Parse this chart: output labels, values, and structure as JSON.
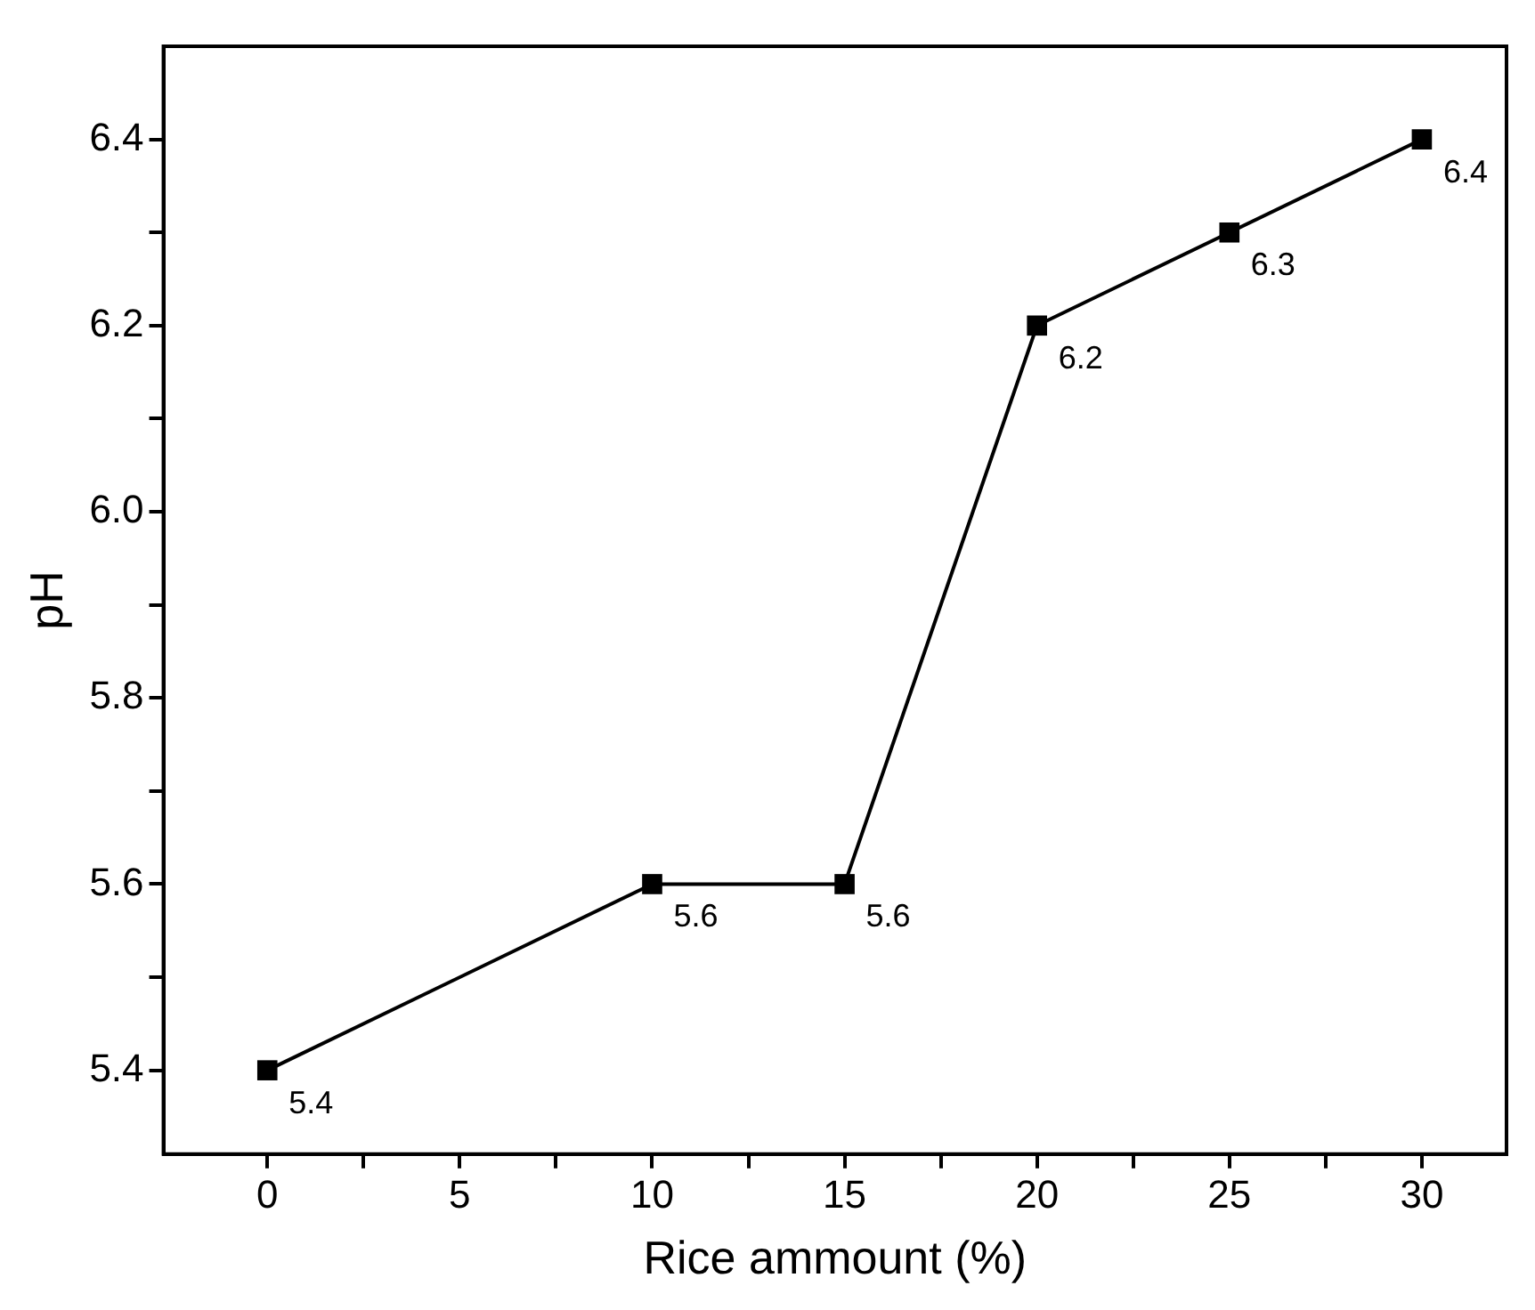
{
  "chart_data": {
    "type": "line",
    "xlabel": "Rice ammount (%)",
    "ylabel": "pH",
    "x": [
      0,
      10,
      15,
      20,
      25,
      30
    ],
    "series": [
      {
        "color": "#000000",
        "values": [
          5.4,
          5.6,
          5.6,
          6.2,
          6.3,
          6.4
        ]
      }
    ],
    "xlim": [
      -2.7,
      32.2
    ],
    "ylim": [
      5.31,
      6.5
    ],
    "xticks": [
      0,
      {
        "value": 2.5,
        "label": null
      },
      5,
      {
        "value": 7.5,
        "label": null
      },
      10,
      {
        "value": 12.5,
        "label": null
      },
      15,
      {
        "value": 17.5,
        "label": null
      },
      20,
      {
        "value": 22.5,
        "label": null
      },
      25,
      {
        "value": 27.5,
        "label": null
      },
      30
    ],
    "yticks": [
      {
        "value": 5.4,
        "label": "5.4"
      },
      {
        "value": 5.5,
        "label": null
      },
      {
        "value": 5.6,
        "label": "5.6"
      },
      {
        "value": 5.7,
        "label": null
      },
      {
        "value": 5.8,
        "label": "5.8"
      },
      {
        "value": 5.9,
        "label": null
      },
      {
        "value": 6.0,
        "label": "6.0"
      },
      {
        "value": 6.1,
        "label": null
      },
      {
        "value": 6.2,
        "label": "6.2"
      },
      {
        "value": 6.3,
        "label": null
      },
      {
        "value": 6.4,
        "label": "6.4"
      }
    ],
    "marker": "square",
    "line_style": "solid",
    "grid": false,
    "legend": false,
    "data_labels": true
  }
}
